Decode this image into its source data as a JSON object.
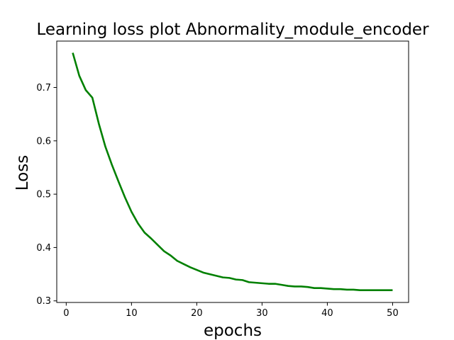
{
  "chart_data": {
    "type": "line",
    "title": "Learning loss plot Abnormality_module_encoder",
    "xlabel": "epochs",
    "ylabel": "Loss",
    "xlim": [
      -1.45,
      52.45
    ],
    "ylim": [
      0.297,
      0.787
    ],
    "xticks": [
      0,
      10,
      20,
      30,
      40,
      50
    ],
    "yticks": [
      0.3,
      0.4,
      0.5,
      0.6,
      0.7
    ],
    "xtick_labels": [
      "0",
      "10",
      "20",
      "30",
      "40",
      "50"
    ],
    "ytick_labels": [
      "0.3",
      "0.4",
      "0.5",
      "0.6",
      "0.7"
    ],
    "grid": false,
    "line_color": "#008000",
    "series": [
      {
        "x": [
          1,
          2,
          3,
          4,
          5,
          6,
          7,
          8,
          9,
          10,
          11,
          12,
          13,
          14,
          15,
          16,
          17,
          18,
          19,
          20,
          21,
          22,
          23,
          24,
          25,
          26,
          27,
          28,
          29,
          30,
          31,
          32,
          33,
          34,
          35,
          36,
          37,
          38,
          39,
          40,
          41,
          42,
          43,
          44,
          45,
          46,
          47,
          48,
          49,
          50
        ],
        "values": [
          0.765,
          0.722,
          0.695,
          0.681,
          0.632,
          0.589,
          0.555,
          0.524,
          0.494,
          0.467,
          0.445,
          0.428,
          0.417,
          0.405,
          0.393,
          0.385,
          0.375,
          0.369,
          0.363,
          0.358,
          0.353,
          0.35,
          0.347,
          0.344,
          0.343,
          0.34,
          0.339,
          0.335,
          0.334,
          0.333,
          0.332,
          0.332,
          0.33,
          0.328,
          0.327,
          0.327,
          0.326,
          0.324,
          0.324,
          0.323,
          0.322,
          0.322,
          0.321,
          0.321,
          0.32,
          0.32,
          0.32,
          0.32,
          0.32,
          0.32
        ]
      }
    ]
  }
}
